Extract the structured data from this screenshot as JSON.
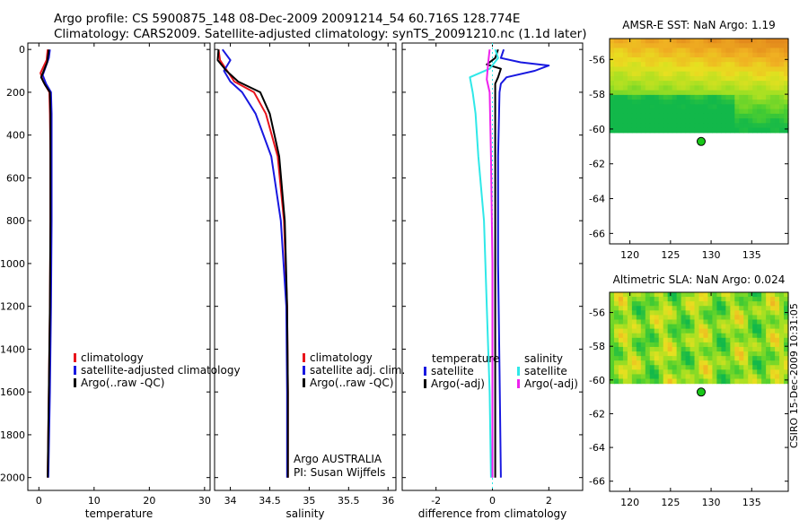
{
  "header": {
    "line1": "Argo profile: CS 5900875_148 08-Dec-2009 20091214_54 60.716S 128.774E",
    "line2": "Climatology: CARS2009. Satellite-adjusted climatology: synTS_20091210.nc (1.1d later)"
  },
  "colors": {
    "red": "#e8141c",
    "blue": "#1818e0",
    "black": "#000000",
    "cyan": "#2fe8e8",
    "magenta": "#ee22ee",
    "green": "#18c818"
  },
  "chart_data": [
    {
      "type": "line",
      "name": "temperature-panel",
      "xlabel": "temperature",
      "ylabel": "",
      "xlim": [
        -2,
        31
      ],
      "ylim": [
        2060,
        -30
      ],
      "xticks": [
        0,
        10,
        20,
        30
      ],
      "xtick_labels": [
        "0",
        "10",
        "20",
        "30"
      ],
      "yticks": [
        0,
        200,
        400,
        600,
        800,
        1000,
        1200,
        1400,
        1600,
        1800,
        2000
      ],
      "ytick_labels": [
        "0",
        "200",
        "400",
        "600",
        "800",
        "1000",
        "1200",
        "1400",
        "1600",
        "1800",
        "2000"
      ],
      "legend": [
        "climatology",
        "satellite-adjusted climatology",
        "Argo(..raw -QC)"
      ],
      "series": [
        {
          "name": "climatology",
          "color": "#e8141c",
          "points": [
            [
              1.6,
              0
            ],
            [
              1.4,
              50
            ],
            [
              0.3,
              110
            ],
            [
              0.8,
              150
            ],
            [
              1.9,
              200
            ],
            [
              2.0,
              300
            ],
            [
              2.1,
              500
            ],
            [
              2.1,
              800
            ],
            [
              2.0,
              1200
            ],
            [
              1.8,
              1600
            ],
            [
              1.6,
              2000
            ]
          ]
        },
        {
          "name": "satellite-adjusted climatology",
          "color": "#1818e0",
          "points": [
            [
              2.0,
              0
            ],
            [
              1.8,
              40
            ],
            [
              0.7,
              120
            ],
            [
              1.3,
              160
            ],
            [
              2.2,
              200
            ],
            [
              2.3,
              300
            ],
            [
              2.3,
              500
            ],
            [
              2.3,
              800
            ],
            [
              2.2,
              1200
            ],
            [
              2.0,
              1600
            ],
            [
              1.7,
              2000
            ]
          ]
        },
        {
          "name": "Argo(..raw -QC)",
          "color": "#000000",
          "points": [
            [
              1.8,
              0
            ],
            [
              1.5,
              60
            ],
            [
              0.4,
              130
            ],
            [
              1.1,
              165
            ],
            [
              2.0,
              200
            ],
            [
              2.1,
              300
            ],
            [
              2.1,
              500
            ],
            [
              2.1,
              800
            ],
            [
              2.0,
              1200
            ],
            [
              1.8,
              1600
            ],
            [
              1.6,
              2000
            ]
          ]
        }
      ]
    },
    {
      "type": "line",
      "name": "salinity-panel",
      "xlabel": "salinity",
      "xlim": [
        33.8,
        36.1
      ],
      "ylim": [
        2060,
        -30
      ],
      "xticks": [
        34,
        34.5,
        35,
        35.5,
        36
      ],
      "xtick_labels": [
        "34",
        "34.5",
        "35",
        "35.5",
        "36"
      ],
      "legend": [
        "climatology",
        "satellite adj. clim.",
        "Argo(..raw -QC)"
      ],
      "annotation": [
        "Argo AUSTRALIA",
        "PI: Susan Wijffels"
      ],
      "series": [
        {
          "name": "climatology",
          "color": "#e8141c",
          "points": [
            [
              33.85,
              0
            ],
            [
              33.87,
              50
            ],
            [
              33.96,
              100
            ],
            [
              34.05,
              150
            ],
            [
              34.3,
              200
            ],
            [
              34.45,
              300
            ],
            [
              34.6,
              500
            ],
            [
              34.68,
              800
            ],
            [
              34.72,
              1200
            ],
            [
              34.73,
              1600
            ],
            [
              34.73,
              2000
            ]
          ]
        },
        {
          "name": "satellite adj. clim.",
          "color": "#1818e0",
          "points": [
            [
              33.9,
              0
            ],
            [
              34.0,
              50
            ],
            [
              33.92,
              100
            ],
            [
              34.0,
              150
            ],
            [
              34.15,
              200
            ],
            [
              34.32,
              300
            ],
            [
              34.52,
              500
            ],
            [
              34.64,
              800
            ],
            [
              34.71,
              1200
            ],
            [
              34.72,
              1600
            ],
            [
              34.72,
              2000
            ]
          ]
        },
        {
          "name": "Argo(..raw -QC)",
          "color": "#000000",
          "points": [
            [
              33.85,
              0
            ],
            [
              33.84,
              50
            ],
            [
              33.95,
              100
            ],
            [
              34.1,
              150
            ],
            [
              34.38,
              200
            ],
            [
              34.5,
              300
            ],
            [
              34.62,
              500
            ],
            [
              34.69,
              800
            ],
            [
              34.72,
              1200
            ],
            [
              34.73,
              1600
            ],
            [
              34.73,
              2000
            ]
          ]
        }
      ]
    },
    {
      "type": "line",
      "name": "difference-panel",
      "xlabel": "difference from climatology",
      "xlim": [
        -3.2,
        3.2
      ],
      "ylim": [
        2060,
        -30
      ],
      "xticks": [
        -2,
        0,
        2
      ],
      "xtick_labels": [
        "-2",
        "0",
        "2"
      ],
      "legend_left_title": "temperature",
      "legend_right_title": "salinity",
      "legend": [
        "satellite",
        "Argo(-adj)",
        "satellite",
        "Argo(-adj)"
      ],
      "series": [
        {
          "name": "temperature satellite",
          "color": "#1818e0",
          "points": [
            [
              0.4,
              0
            ],
            [
              0.3,
              40
            ],
            [
              1.0,
              60
            ],
            [
              2.0,
              75
            ],
            [
              1.5,
              100
            ],
            [
              0.5,
              130
            ],
            [
              0.3,
              160
            ],
            [
              0.25,
              200
            ],
            [
              0.2,
              500
            ],
            [
              0.2,
              1000
            ],
            [
              0.25,
              1500
            ],
            [
              0.3,
              2000
            ]
          ]
        },
        {
          "name": "temperature Argo(-adj)",
          "color": "#000000",
          "points": [
            [
              0.2,
              0
            ],
            [
              0.1,
              40
            ],
            [
              -0.2,
              70
            ],
            [
              0.3,
              90
            ],
            [
              0.2,
              130
            ],
            [
              0.1,
              160
            ],
            [
              0.1,
              200
            ],
            [
              0.1,
              500
            ],
            [
              0.1,
              1000
            ],
            [
              0.1,
              1500
            ],
            [
              0.1,
              2000
            ]
          ]
        },
        {
          "name": "salinity satellite",
          "color": "#2fe8e8",
          "points": [
            [
              0.1,
              0
            ],
            [
              0.2,
              40
            ],
            [
              -0.1,
              90
            ],
            [
              -0.8,
              130
            ],
            [
              -0.7,
              200
            ],
            [
              -0.6,
              300
            ],
            [
              -0.5,
              500
            ],
            [
              -0.3,
              800
            ],
            [
              -0.2,
              1200
            ],
            [
              -0.1,
              1600
            ],
            [
              -0.05,
              2000
            ]
          ]
        },
        {
          "name": "salinity Argo(-adj)",
          "color": "#ee22ee",
          "points": [
            [
              -0.1,
              0
            ],
            [
              -0.15,
              60
            ],
            [
              -0.2,
              140
            ],
            [
              -0.1,
              200
            ],
            [
              -0.05,
              500
            ],
            [
              0,
              1000
            ],
            [
              0,
              1500
            ],
            [
              0,
              2000
            ]
          ]
        }
      ]
    },
    {
      "type": "heatmap",
      "name": "amsr-sst-map",
      "title": "AMSR-E SST: NaN Argo: 1.19",
      "xlim": [
        117.5,
        139.5
      ],
      "ylim": [
        -66.6,
        -54.8
      ],
      "xticks": [
        120,
        125,
        130,
        135
      ],
      "yticks": [
        -56,
        -58,
        -60,
        -62,
        -64,
        -66
      ],
      "xtick_labels": [
        "120",
        "125",
        "130",
        "135"
      ],
      "ytick_labels": [
        "-56",
        "-58",
        "-60",
        "-62",
        "-64",
        "-66"
      ],
      "data_extent": {
        "lon": [
          117.5,
          139.5
        ],
        "lat": [
          -60.2,
          -54.8
        ]
      },
      "float_position": {
        "lon": 128.774,
        "lat": -60.716
      }
    },
    {
      "type": "heatmap",
      "name": "altimetric-sla-map",
      "title": "Altimetric SLA: NaN Argo: 0.024",
      "xlim": [
        117.5,
        139.5
      ],
      "ylim": [
        -66.6,
        -54.8
      ],
      "xticks": [
        120,
        125,
        130,
        135
      ],
      "yticks": [
        -56,
        -58,
        -60,
        -62,
        -64,
        -66
      ],
      "xtick_labels": [
        "120",
        "125",
        "130",
        "135"
      ],
      "ytick_labels": [
        "-56",
        "-58",
        "-60",
        "-62",
        "-64",
        "-66"
      ],
      "data_extent": {
        "lon": [
          117.5,
          139.5
        ],
        "lat": [
          -60.2,
          -54.8
        ]
      },
      "float_position": {
        "lon": 128.774,
        "lat": -60.716
      }
    }
  ],
  "side_note": "CSIRO 15-Dec-2009 10:31:05"
}
